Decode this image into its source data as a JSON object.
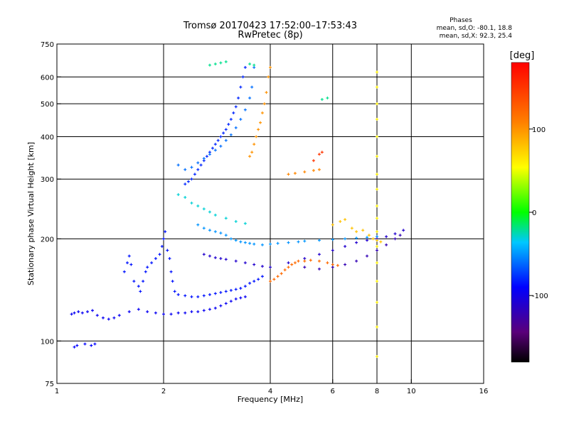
{
  "chart_data": {
    "type": "scatter",
    "title": "Tromsø 20170423 17:52:00–17:53:43",
    "subtitle": "RwPretec (8p)",
    "xlabel": "Frequency [MHz]",
    "ylabel": "Stationary phase Virtual Height [km]",
    "x_scale": "log",
    "y_scale": "log",
    "xlim": [
      1,
      16
    ],
    "ylim": [
      75,
      750
    ],
    "x_ticks": [
      1,
      2,
      4,
      6,
      8,
      10,
      16
    ],
    "y_ticks": [
      75,
      100,
      200,
      300,
      400,
      500,
      600,
      750
    ],
    "x_grid": [
      2,
      4,
      6,
      8,
      10
    ],
    "y_grid": [
      100,
      200,
      300,
      400,
      500,
      600
    ],
    "grid": true,
    "phase_info": {
      "title": "Phases",
      "line1": "mean, sd,O: -80.1, 18.8",
      "line2": "mean, sd,X:  92.3, 25.4"
    },
    "colorbar": {
      "label": "[deg]",
      "range": [
        -180,
        180
      ],
      "ticks": [
        -100,
        0,
        100
      ],
      "tick_labels": [
        "-100",
        "0",
        "100"
      ],
      "colormap": "rainbow"
    },
    "series": [
      {
        "phase": -95,
        "points": [
          [
            1.1,
            120
          ],
          [
            1.12,
            121
          ],
          [
            1.15,
            122
          ],
          [
            1.18,
            121
          ],
          [
            1.22,
            122
          ],
          [
            1.26,
            123
          ],
          [
            1.3,
            119
          ],
          [
            1.35,
            117
          ],
          [
            1.4,
            116
          ],
          [
            1.45,
            117
          ],
          [
            1.5,
            119
          ],
          [
            1.6,
            122
          ],
          [
            1.7,
            124
          ],
          [
            1.8,
            122
          ],
          [
            1.9,
            121
          ],
          [
            2.0,
            120
          ],
          [
            2.1,
            120
          ],
          [
            2.2,
            121
          ],
          [
            2.3,
            121
          ],
          [
            2.4,
            122
          ],
          [
            2.5,
            122
          ],
          [
            2.6,
            123
          ],
          [
            2.7,
            124
          ],
          [
            2.8,
            125
          ],
          [
            2.9,
            127
          ],
          [
            3.0,
            129
          ],
          [
            3.1,
            131
          ],
          [
            3.2,
            133
          ],
          [
            3.3,
            134
          ],
          [
            3.4,
            135
          ]
        ]
      },
      {
        "phase": -90,
        "points": [
          [
            1.12,
            96
          ],
          [
            1.14,
            97
          ],
          [
            1.2,
            98
          ],
          [
            1.25,
            97
          ],
          [
            1.28,
            98
          ]
        ]
      },
      {
        "phase": -85,
        "points": [
          [
            1.55,
            160
          ],
          [
            1.58,
            170
          ],
          [
            1.6,
            178
          ],
          [
            1.62,
            168
          ],
          [
            1.65,
            150
          ],
          [
            1.7,
            145
          ],
          [
            1.72,
            140
          ],
          [
            1.75,
            150
          ],
          [
            1.78,
            160
          ],
          [
            1.8,
            165
          ],
          [
            1.85,
            170
          ],
          [
            1.9,
            175
          ],
          [
            1.95,
            180
          ],
          [
            1.98,
            190
          ],
          [
            2.0,
            200
          ],
          [
            2.02,
            210
          ],
          [
            2.05,
            185
          ],
          [
            2.08,
            175
          ],
          [
            2.1,
            160
          ],
          [
            2.12,
            150
          ],
          [
            2.15,
            140
          ],
          [
            2.2,
            137
          ],
          [
            2.3,
            136
          ],
          [
            2.4,
            135
          ],
          [
            2.5,
            135
          ],
          [
            2.6,
            136
          ],
          [
            2.7,
            137
          ],
          [
            2.8,
            138
          ],
          [
            2.9,
            139
          ],
          [
            3.0,
            140
          ],
          [
            3.1,
            141
          ],
          [
            3.2,
            142
          ],
          [
            3.3,
            143
          ],
          [
            3.4,
            145
          ],
          [
            3.5,
            148
          ],
          [
            3.6,
            150
          ],
          [
            3.7,
            152
          ],
          [
            3.8,
            155
          ]
        ]
      },
      {
        "phase": -80,
        "points": [
          [
            2.3,
            290
          ],
          [
            2.35,
            295
          ],
          [
            2.4,
            300
          ],
          [
            2.45,
            310
          ],
          [
            2.5,
            320
          ],
          [
            2.55,
            330
          ],
          [
            2.6,
            340
          ],
          [
            2.65,
            350
          ],
          [
            2.7,
            360
          ],
          [
            2.75,
            370
          ],
          [
            2.8,
            380
          ],
          [
            2.85,
            390
          ],
          [
            2.9,
            400
          ],
          [
            2.95,
            410
          ],
          [
            3.0,
            420
          ],
          [
            3.05,
            435
          ],
          [
            3.1,
            450
          ],
          [
            3.15,
            470
          ],
          [
            3.2,
            490
          ],
          [
            3.25,
            520
          ],
          [
            3.3,
            560
          ],
          [
            3.35,
            600
          ],
          [
            3.4,
            640
          ]
        ]
      },
      {
        "phase": -60,
        "points": [
          [
            2.2,
            330
          ],
          [
            2.3,
            320
          ],
          [
            2.4,
            325
          ],
          [
            2.5,
            335
          ],
          [
            2.6,
            345
          ],
          [
            2.7,
            355
          ],
          [
            2.8,
            365
          ],
          [
            2.9,
            375
          ],
          [
            3.0,
            390
          ],
          [
            3.1,
            405
          ],
          [
            3.2,
            425
          ],
          [
            3.3,
            450
          ],
          [
            3.4,
            480
          ],
          [
            3.5,
            520
          ],
          [
            3.55,
            560
          ],
          [
            3.6,
            640
          ]
        ]
      },
      {
        "phase": -50,
        "points": [
          [
            2.5,
            220
          ],
          [
            2.6,
            215
          ],
          [
            2.7,
            212
          ],
          [
            2.8,
            210
          ],
          [
            2.9,
            208
          ],
          [
            3.0,
            205
          ],
          [
            3.1,
            200
          ],
          [
            3.2,
            198
          ],
          [
            3.3,
            196
          ],
          [
            3.4,
            195
          ],
          [
            3.5,
            194
          ],
          [
            3.6,
            193
          ],
          [
            3.8,
            192
          ],
          [
            4.0,
            193
          ],
          [
            4.2,
            194
          ],
          [
            4.5,
            195
          ],
          [
            4.8,
            196
          ],
          [
            5.0,
            197
          ],
          [
            5.5,
            198
          ],
          [
            6.0,
            199
          ],
          [
            6.5,
            200
          ],
          [
            7.0,
            201
          ],
          [
            7.5,
            202
          ],
          [
            8.0,
            203
          ]
        ]
      },
      {
        "phase": -110,
        "points": [
          [
            2.6,
            180
          ],
          [
            2.7,
            178
          ],
          [
            2.8,
            176
          ],
          [
            2.9,
            175
          ],
          [
            3.0,
            174
          ],
          [
            3.2,
            172
          ],
          [
            3.4,
            170
          ],
          [
            3.6,
            168
          ],
          [
            3.8,
            166
          ],
          [
            4.0,
            165
          ],
          [
            4.5,
            170
          ],
          [
            5.0,
            175
          ],
          [
            5.5,
            180
          ],
          [
            6.0,
            185
          ],
          [
            6.5,
            190
          ],
          [
            7.0,
            195
          ],
          [
            7.5,
            198
          ],
          [
            8.0,
            200
          ],
          [
            8.5,
            203
          ],
          [
            9.0,
            207
          ],
          [
            9.5,
            212
          ]
        ]
      },
      {
        "phase": -120,
        "points": [
          [
            5.0,
            165
          ],
          [
            5.5,
            163
          ],
          [
            6.0,
            165
          ],
          [
            6.5,
            168
          ],
          [
            7.0,
            172
          ],
          [
            7.5,
            178
          ],
          [
            8.0,
            185
          ],
          [
            8.5,
            192
          ],
          [
            9.0,
            200
          ],
          [
            9.3,
            205
          ]
        ]
      },
      {
        "phase": 120,
        "points": [
          [
            4.0,
            150
          ],
          [
            4.1,
            152
          ],
          [
            4.2,
            155
          ],
          [
            4.3,
            158
          ],
          [
            4.4,
            162
          ],
          [
            4.5,
            165
          ],
          [
            4.6,
            168
          ],
          [
            4.7,
            170
          ],
          [
            4.8,
            172
          ],
          [
            5.0,
            172
          ],
          [
            5.2,
            173
          ],
          [
            5.5,
            172
          ],
          [
            5.8,
            170
          ],
          [
            6.0,
            168
          ],
          [
            6.2,
            167
          ]
        ]
      },
      {
        "phase": 100,
        "points": [
          [
            3.5,
            350
          ],
          [
            3.55,
            360
          ],
          [
            3.6,
            380
          ],
          [
            3.65,
            400
          ],
          [
            3.7,
            420
          ],
          [
            3.75,
            440
          ],
          [
            3.8,
            470
          ],
          [
            3.85,
            500
          ],
          [
            3.9,
            540
          ],
          [
            3.95,
            600
          ],
          [
            4.0,
            640
          ]
        ]
      },
      {
        "phase": 105,
        "points": [
          [
            4.5,
            310
          ],
          [
            4.7,
            312
          ],
          [
            5.0,
            315
          ],
          [
            5.3,
            318
          ],
          [
            5.5,
            320
          ]
        ]
      },
      {
        "phase": 80,
        "points": [
          [
            6.0,
            220
          ],
          [
            6.3,
            225
          ],
          [
            6.5,
            228
          ],
          [
            6.8,
            215
          ],
          [
            7.0,
            210
          ],
          [
            7.3,
            212
          ],
          [
            7.6,
            205
          ],
          [
            7.8,
            200
          ],
          [
            8.0,
            198
          ],
          [
            8.2,
            196
          ]
        ]
      },
      {
        "phase": 60,
        "points": [
          [
            8.0,
            90
          ],
          [
            8.0,
            110
          ],
          [
            8.0,
            130
          ],
          [
            8.0,
            150
          ],
          [
            8.0,
            170
          ],
          [
            8.0,
            190
          ],
          [
            8.0,
            210
          ],
          [
            8.0,
            230
          ],
          [
            8.0,
            250
          ],
          [
            8.0,
            280
          ],
          [
            8.0,
            310
          ],
          [
            8.0,
            350
          ],
          [
            8.0,
            400
          ],
          [
            8.0,
            450
          ],
          [
            8.0,
            500
          ],
          [
            8.0,
            560
          ],
          [
            8.0,
            620
          ]
        ]
      },
      {
        "phase": 150,
        "points": [
          [
            5.3,
            340
          ],
          [
            5.5,
            355
          ],
          [
            5.6,
            360
          ]
        ]
      },
      {
        "phase": -20,
        "points": [
          [
            2.7,
            650
          ],
          [
            2.8,
            655
          ],
          [
            2.9,
            660
          ],
          [
            3.0,
            665
          ],
          [
            3.5,
            655
          ],
          [
            3.6,
            650
          ],
          [
            5.6,
            515
          ],
          [
            5.8,
            520
          ]
        ]
      },
      {
        "phase": -30,
        "points": [
          [
            2.2,
            270
          ],
          [
            2.3,
            265
          ],
          [
            2.4,
            255
          ],
          [
            2.5,
            250
          ],
          [
            2.6,
            245
          ],
          [
            2.7,
            240
          ],
          [
            2.8,
            235
          ],
          [
            3.0,
            230
          ],
          [
            3.2,
            225
          ],
          [
            3.4,
            222
          ]
        ]
      }
    ]
  }
}
